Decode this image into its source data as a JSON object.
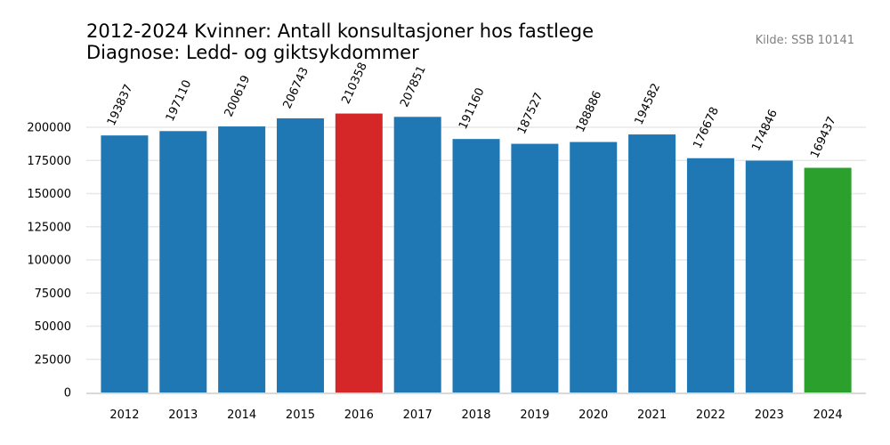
{
  "chart_data": {
    "type": "bar",
    "title_lines": [
      "2012-2024 Kvinner: Antall konsultasjoner hos fastlege",
      "Diagnose: Ledd- og giktsykdommer"
    ],
    "source": "Kilde: SSB 10141",
    "categories": [
      "2012",
      "2013",
      "2014",
      "2015",
      "2016",
      "2017",
      "2018",
      "2019",
      "2020",
      "2021",
      "2022",
      "2023",
      "2024"
    ],
    "values": [
      193837,
      197110,
      200619,
      206743,
      210358,
      207851,
      191160,
      187527,
      188886,
      194582,
      176678,
      174846,
      169437
    ],
    "value_labels": [
      "193837",
      "197110",
      "200619",
      "206743",
      "210358",
      "207851",
      "191160",
      "187527",
      "188886",
      "194582",
      "176678",
      "174846",
      "169437"
    ],
    "yticks": [
      0,
      25000,
      50000,
      75000,
      100000,
      125000,
      150000,
      175000,
      200000
    ],
    "ytick_labels": [
      "0",
      "25000",
      "50000",
      "75000",
      "100000",
      "125000",
      "150000",
      "175000",
      "200000"
    ],
    "ylim": [
      0,
      225000
    ],
    "xlabel": "",
    "ylabel": "",
    "grid": true,
    "colors": {
      "default": "#1f77b4",
      "max": "#d62728",
      "last": "#2ca02c",
      "grid": "#e8e8e8",
      "axis": "#d9d9d9"
    },
    "highlight": {
      "max_category": "2016",
      "last_category": "2024"
    }
  }
}
